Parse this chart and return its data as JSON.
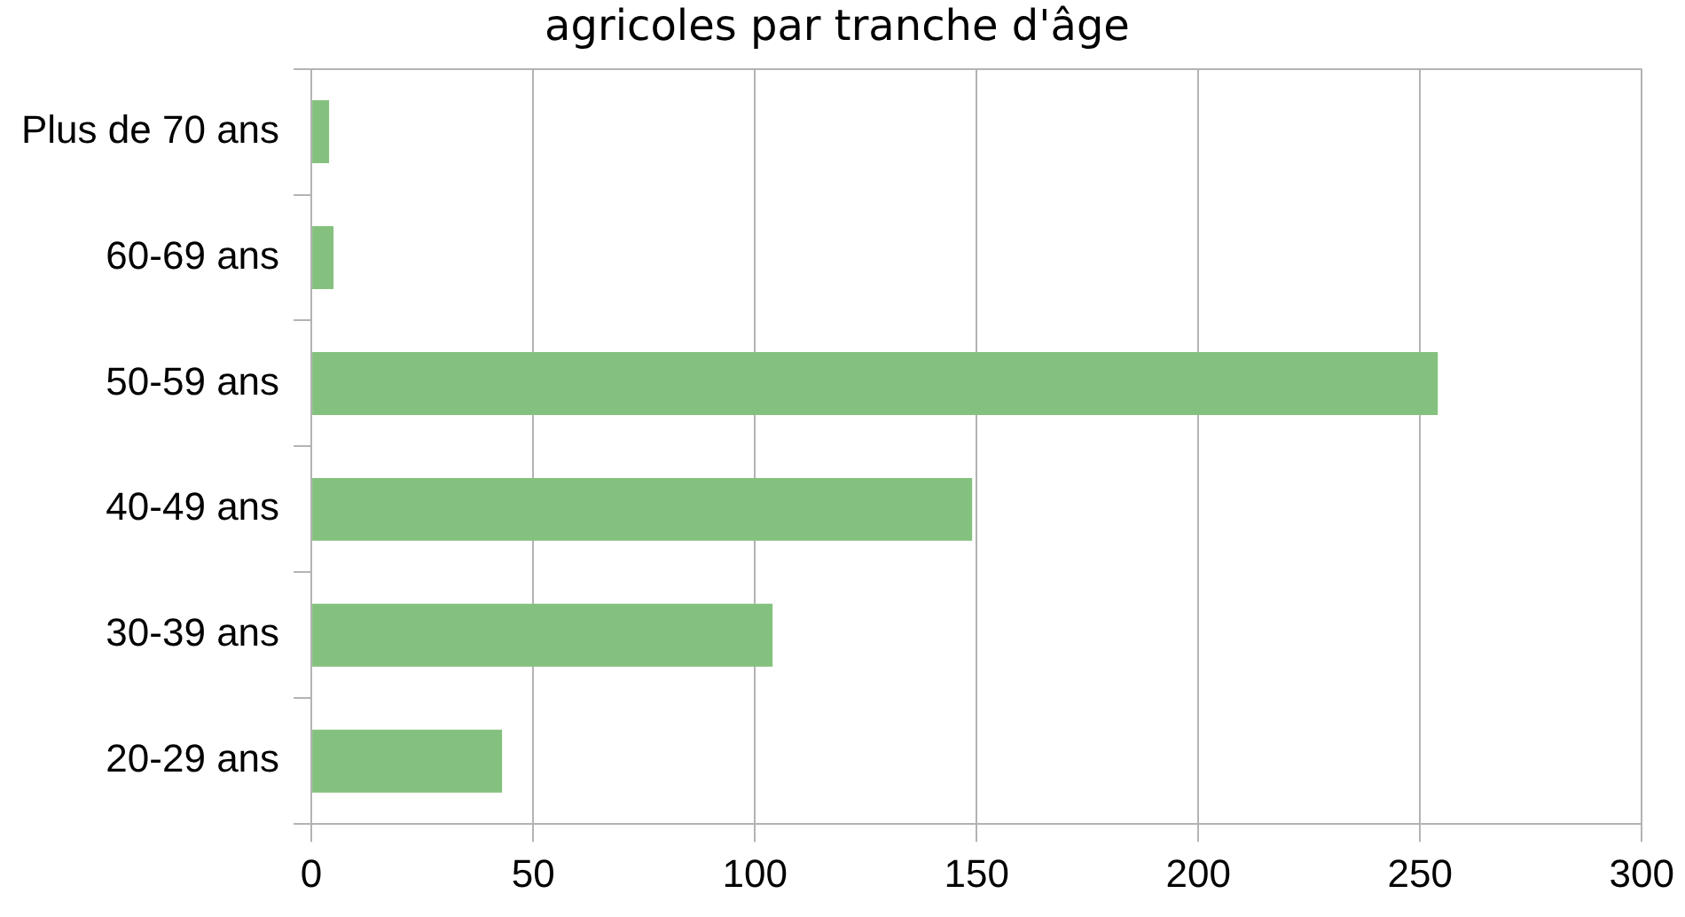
{
  "chart_data": {
    "type": "bar",
    "orientation": "horizontal",
    "title": "agricoles par tranche d'âge",
    "categories": [
      "Plus de 70 ans",
      "60-69 ans",
      "50-59 ans",
      "40-49 ans",
      "30-39 ans",
      "20-29 ans"
    ],
    "values": [
      4,
      5,
      254,
      149,
      104,
      43
    ],
    "color": "#85c17e",
    "xlim": [
      0,
      300
    ],
    "xticks": [
      0,
      50,
      100,
      150,
      200,
      250,
      300
    ],
    "grid": "x"
  }
}
